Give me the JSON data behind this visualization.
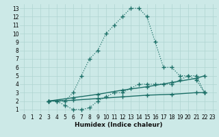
{
  "xlabel": "Humidex (Indice chaleur)",
  "xlim": [
    -0.5,
    23.5
  ],
  "ylim": [
    0.5,
    13.5
  ],
  "xticks": [
    0,
    1,
    2,
    3,
    4,
    5,
    6,
    7,
    8,
    9,
    10,
    11,
    12,
    13,
    14,
    15,
    16,
    17,
    18,
    19,
    20,
    21,
    22,
    23
  ],
  "yticks": [
    1,
    2,
    3,
    4,
    5,
    6,
    7,
    8,
    9,
    10,
    11,
    12,
    13
  ],
  "bg_color": "#cce9e7",
  "grid_color": "#aed4d1",
  "line_color": "#1a6e66",
  "curve1_x": [
    3,
    4,
    5,
    6,
    7,
    8,
    9,
    10,
    11,
    12,
    13,
    14,
    15,
    16,
    17,
    18,
    19,
    20,
    21,
    22
  ],
  "curve1_y": [
    2,
    2,
    2,
    3,
    5,
    7,
    8,
    10,
    11,
    12,
    13,
    13,
    12,
    9,
    6,
    6,
    5,
    5,
    5,
    3
  ],
  "curve2_x": [
    3,
    4,
    5,
    6,
    7,
    8,
    9,
    10,
    11,
    12,
    13,
    14,
    15,
    16,
    17,
    18,
    19,
    20,
    21,
    22
  ],
  "curve2_y": [
    2,
    2,
    1.5,
    1,
    1,
    1.2,
    2,
    2.5,
    3,
    3,
    3.5,
    4,
    4,
    4,
    4,
    4,
    4.5,
    5,
    4.5,
    3
  ],
  "curve3_x": [
    3,
    22
  ],
  "curve3_y": [
    2,
    5
  ],
  "curve3_markers_x": [
    3,
    6,
    9,
    12,
    15,
    18,
    21,
    22
  ],
  "curve3_markers_y": [
    2,
    2.4,
    2.8,
    3.3,
    3.7,
    4.2,
    4.7,
    5
  ],
  "curve4_x": [
    3,
    22
  ],
  "curve4_y": [
    2,
    3
  ],
  "curve4_markers_x": [
    3,
    6,
    9,
    12,
    15,
    18,
    21,
    22
  ],
  "curve4_markers_y": [
    2,
    2.1,
    2.3,
    2.5,
    2.7,
    2.8,
    3.0,
    3.0
  ]
}
